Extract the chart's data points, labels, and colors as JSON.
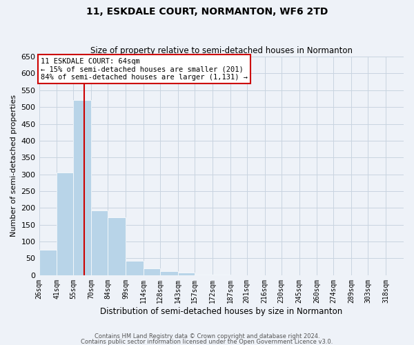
{
  "title": "11, ESKDALE COURT, NORMANTON, WF6 2TD",
  "subtitle": "Size of property relative to semi-detached houses in Normanton",
  "xlabel": "Distribution of semi-detached houses by size in Normanton",
  "ylabel": "Number of semi-detached properties",
  "footer_line1": "Contains HM Land Registry data © Crown copyright and database right 2024.",
  "footer_line2": "Contains public sector information licensed under the Open Government Licence v3.0.",
  "annotation_title": "11 ESKDALE COURT: 64sqm",
  "annotation_line1": "← 15% of semi-detached houses are smaller (201)",
  "annotation_line2": "84% of semi-detached houses are larger (1,131) →",
  "property_size": 64,
  "bar_labels": [
    "26sqm",
    "41sqm",
    "55sqm",
    "70sqm",
    "84sqm",
    "99sqm",
    "114sqm",
    "128sqm",
    "143sqm",
    "157sqm",
    "172sqm",
    "187sqm",
    "201sqm",
    "216sqm",
    "230sqm",
    "245sqm",
    "260sqm",
    "274sqm",
    "289sqm",
    "303sqm",
    "318sqm"
  ],
  "bar_values": [
    75,
    305,
    520,
    192,
    172,
    43,
    20,
    12,
    7,
    2,
    1,
    0,
    0,
    0,
    0,
    0,
    0,
    0,
    0,
    0,
    0
  ],
  "bar_edges": [
    26,
    41,
    55,
    70,
    84,
    99,
    114,
    128,
    143,
    157,
    172,
    187,
    201,
    216,
    230,
    245,
    260,
    274,
    289,
    303,
    318,
    333
  ],
  "bar_color": "#b8d4e8",
  "vline_x": 64,
  "vline_color": "#cc0000",
  "ylim": [
    0,
    650
  ],
  "yticks": [
    0,
    50,
    100,
    150,
    200,
    250,
    300,
    350,
    400,
    450,
    500,
    550,
    600,
    650
  ],
  "grid_color": "#c8d4e0",
  "bg_color": "#eef2f8",
  "box_edgecolor": "#cc0000",
  "title_fontsize": 10,
  "subtitle_fontsize": 8.5,
  "ylabel_fontsize": 8,
  "xlabel_fontsize": 8.5,
  "figsize": [
    6.0,
    5.0
  ],
  "dpi": 100
}
